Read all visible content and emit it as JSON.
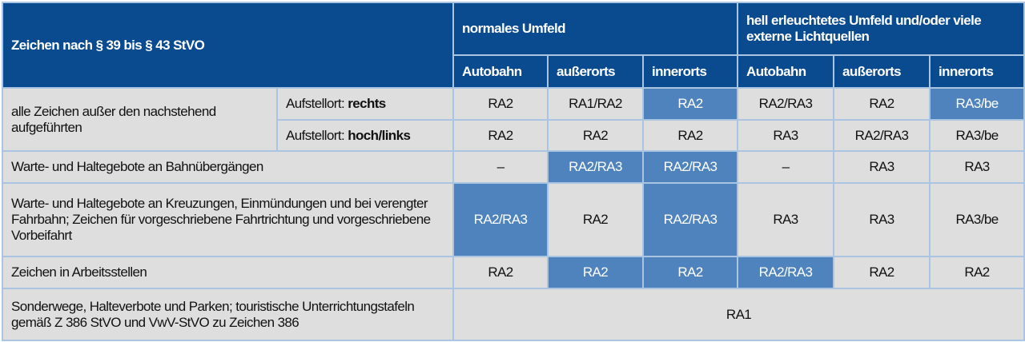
{
  "header": {
    "title": "Zeichen nach § 39 bis § 43 StVO",
    "group1": "normales Umfeld",
    "group2": "hell erleuchtetes Umfeld und/oder viele externe Lichtquellen",
    "columns": [
      "Autobahn",
      "außerorts",
      "innerorts",
      "Autobahn",
      "außerorts",
      "innerorts"
    ]
  },
  "colors": {
    "header": "#0a4a8f",
    "cell": "#dedede",
    "highlight": "#4f83bd",
    "border": "#a9c5e2"
  },
  "rows": [
    {
      "label": "alle Zeichen außer den nachstehend aufgeführten",
      "sub": [
        {
          "prefix": "Aufstellort: ",
          "bold": "rechts",
          "values": [
            "RA2",
            "RA1/RA2",
            "RA2",
            "RA2/RA3",
            "RA2",
            "RA3/be"
          ],
          "highlight": [
            false,
            false,
            true,
            false,
            false,
            true
          ]
        },
        {
          "prefix": "Aufstellort: ",
          "bold": "hoch/links",
          "values": [
            "RA2",
            "RA2",
            "RA2",
            "RA3",
            "RA2/RA3",
            "RA3/be"
          ],
          "highlight": [
            false,
            false,
            false,
            false,
            false,
            false
          ]
        }
      ]
    },
    {
      "label": "Warte- und Haltegebote an Bahnübergängen",
      "values": [
        "–",
        "RA2/RA3",
        "RA2/RA3",
        "–",
        "RA3",
        "RA3"
      ],
      "highlight": [
        false,
        true,
        true,
        false,
        false,
        false
      ]
    },
    {
      "label": "Warte- und Haltegebote an Kreuzungen, Einmündungen und bei verengter Fahrbahn; Zeichen für vorgeschriebene Fahrtrichtung und vorgeschriebene Vorbeifahrt",
      "values": [
        "RA2/RA3",
        "RA2",
        "RA2/RA3",
        "RA3",
        "RA3",
        "RA3/be"
      ],
      "highlight": [
        true,
        false,
        true,
        false,
        false,
        false
      ]
    },
    {
      "label": "Zeichen in Arbeitsstellen",
      "values": [
        "RA2",
        "RA2",
        "RA2",
        "RA2/RA3",
        "RA2",
        "RA2"
      ],
      "highlight": [
        false,
        true,
        true,
        true,
        false,
        false
      ]
    },
    {
      "label": "Sonderwege, Halteverbote und Parken; touristische Unterrichtungstafeln gemäß Z 386 StVO und VwV-StVO zu Zeichen 386",
      "value": "RA1"
    }
  ]
}
